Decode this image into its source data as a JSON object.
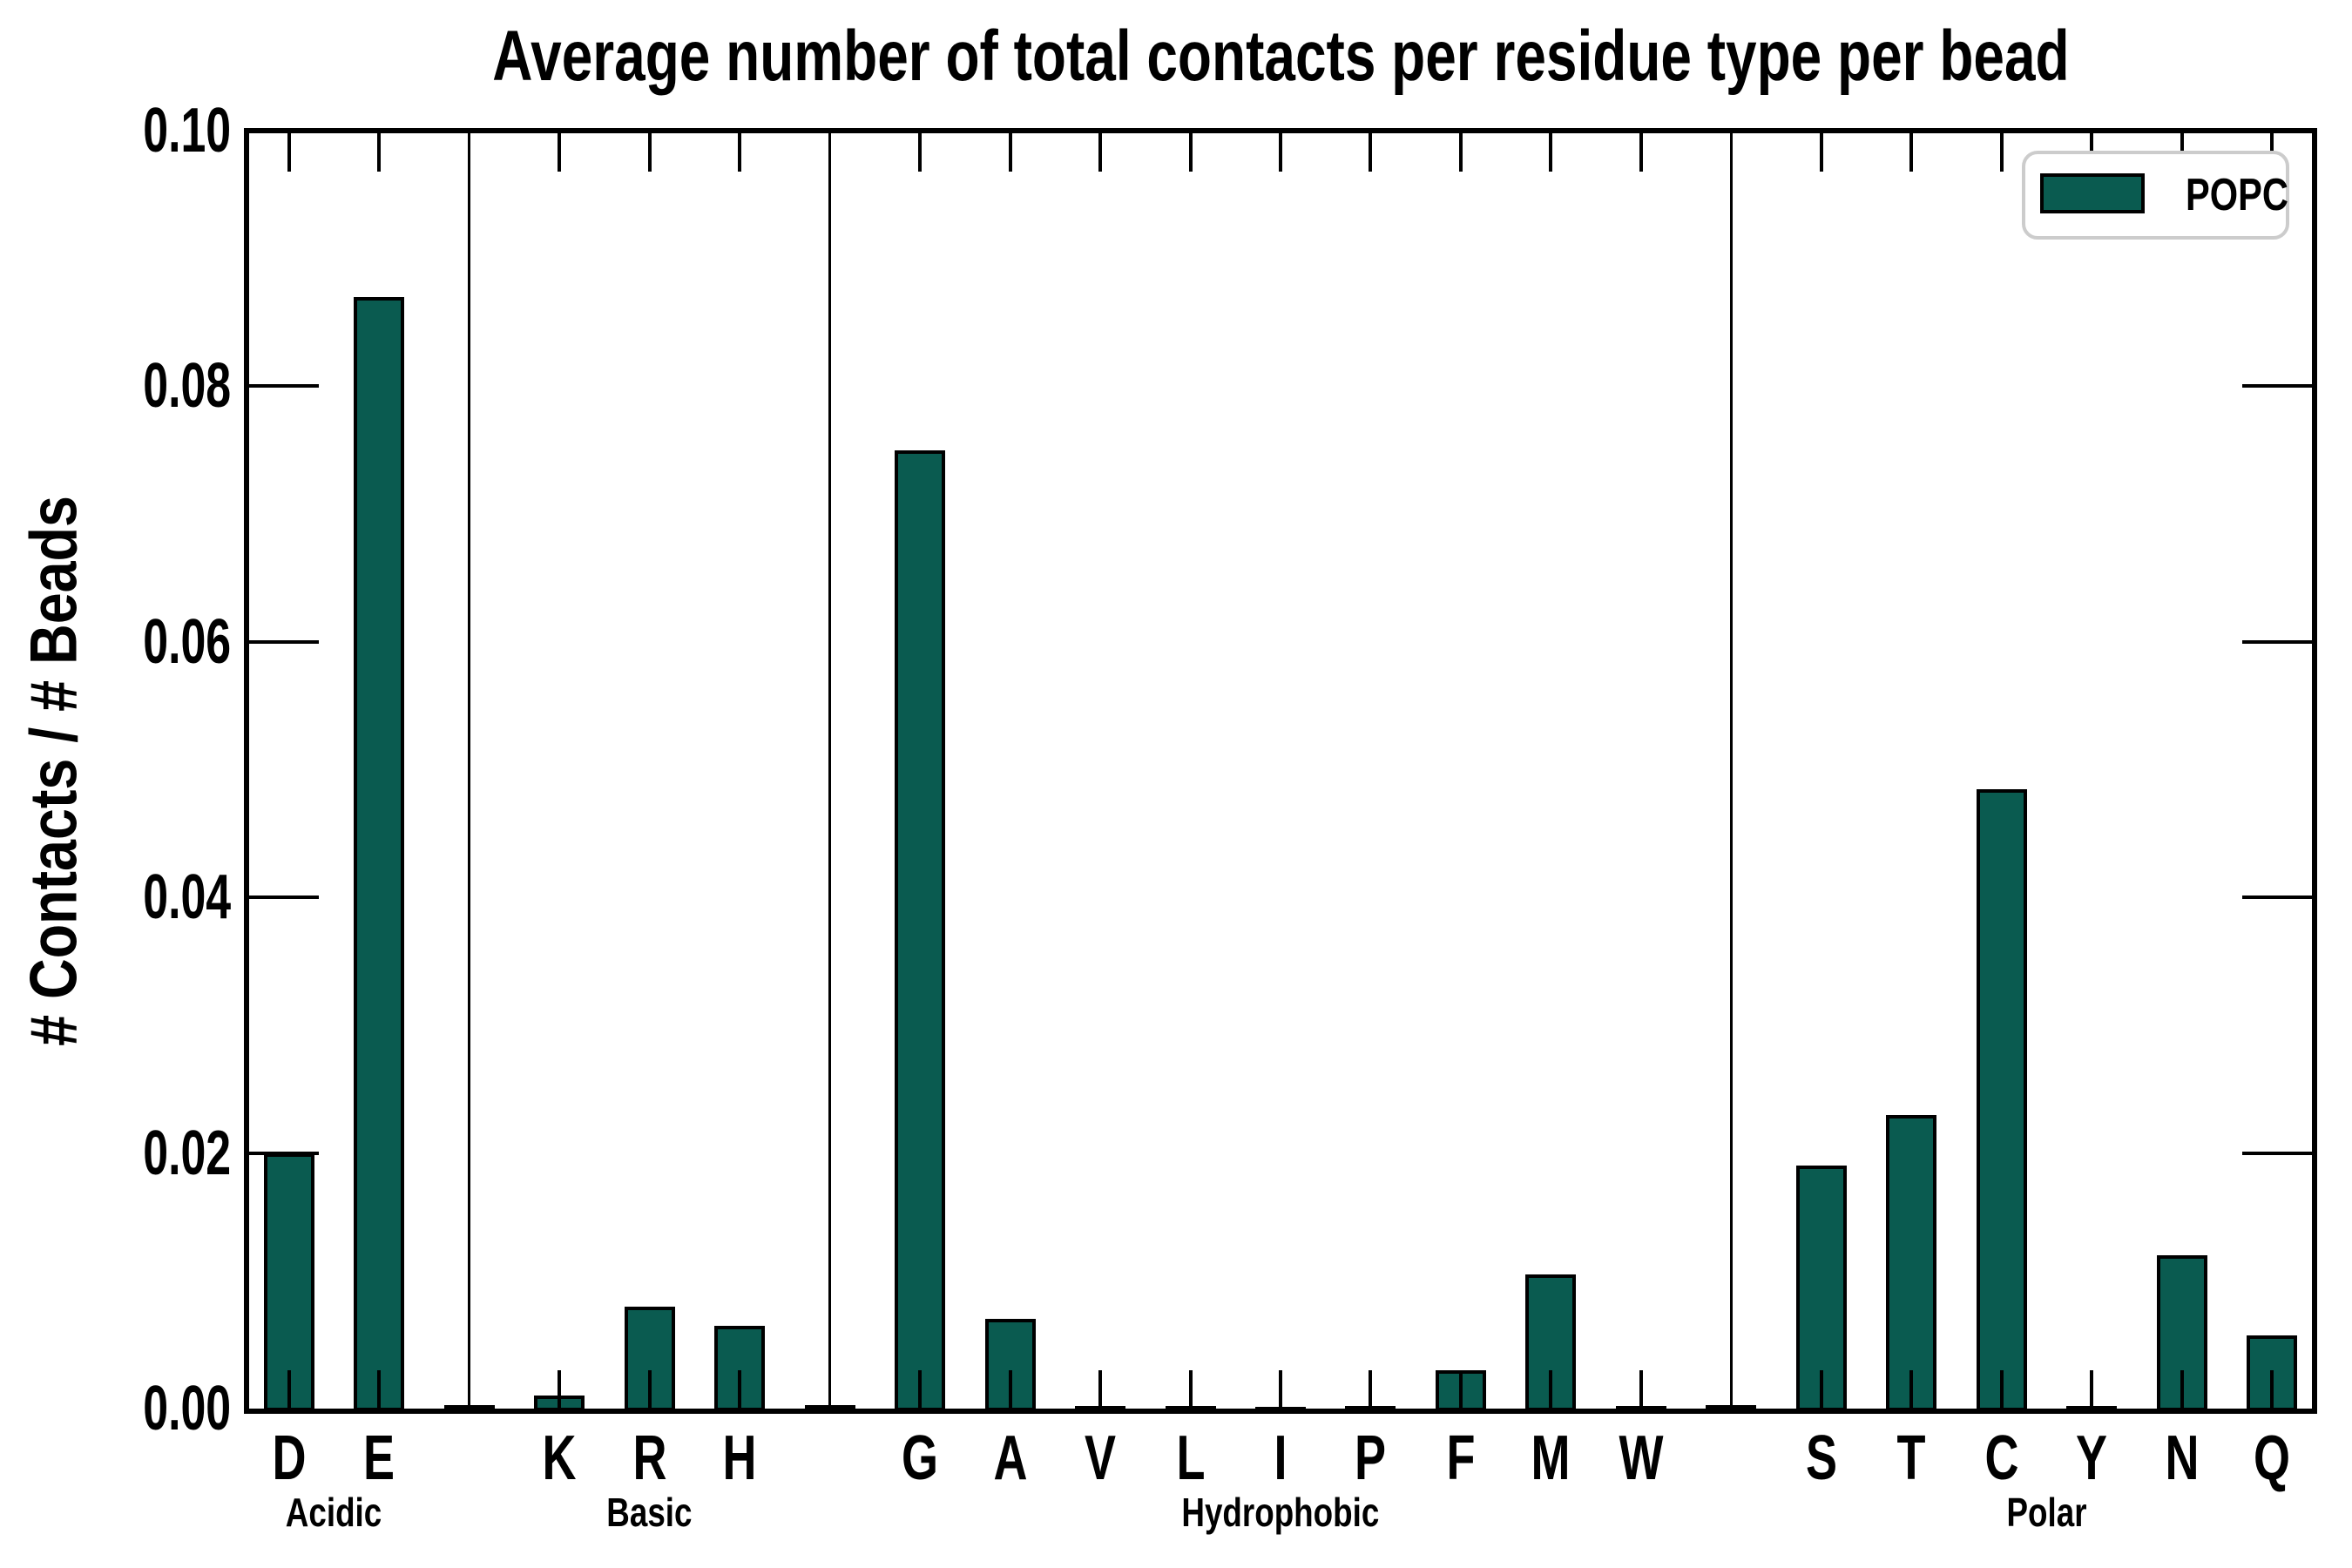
{
  "page": {
    "background": "#ffffff"
  },
  "header": {
    "title": "Average number of total contacts per residue type per bead"
  },
  "axes": {
    "ylabel": "# Contacts / # Beads",
    "ytick_labels": [
      "0.00",
      "0.02",
      "0.04",
      "0.06",
      "0.08",
      "0.10"
    ]
  },
  "legend": {
    "label": "POPC",
    "swatch_color": "#0A5B50",
    "border_color": "#cccccc"
  },
  "colors": {
    "bar_fill": "#0A5B50",
    "bar_edge": "#000000",
    "axis": "#000000"
  },
  "chart_data": {
    "type": "bar",
    "title": "Average number of total contacts per residue type per bead",
    "xlabel": "",
    "ylabel": "# Contacts / # Beads",
    "ylim": [
      0,
      0.1
    ],
    "yticks": [
      0,
      0.02,
      0.04,
      0.06,
      0.08,
      0.1
    ],
    "grid": false,
    "legend_position": "upper right",
    "series_name": "POPC",
    "groups": [
      {
        "label": "Acidic",
        "categories": [
          "D",
          "E"
        ],
        "values": [
          0.02,
          0.087
        ]
      },
      {
        "label": "Basic",
        "categories": [
          "K",
          "R",
          "H"
        ],
        "values": [
          0.001,
          0.008,
          0.0065
        ]
      },
      {
        "label": "Hydrophobic",
        "categories": [
          "G",
          "A",
          "V",
          "L",
          "I",
          "P",
          "F",
          "M",
          "W"
        ],
        "values": [
          0.075,
          0.007,
          0.0002,
          0.0002,
          0.0001,
          0.0002,
          0.003,
          0.0105,
          0.0002
        ]
      },
      {
        "label": "Polar",
        "categories": [
          "S",
          "T",
          "C",
          "Y",
          "N",
          "Q"
        ],
        "values": [
          0.019,
          0.023,
          0.0485,
          0.0002,
          0.012,
          0.0057
        ]
      }
    ]
  }
}
